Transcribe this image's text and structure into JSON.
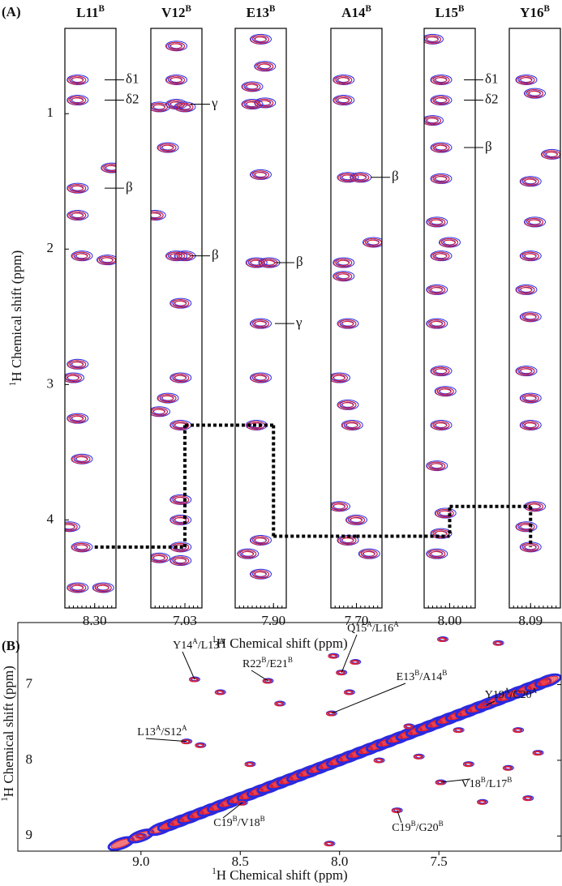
{
  "chart_data": [
    {
      "type": "strips",
      "panel": "(A)",
      "x_label": {
        "sup": "1",
        "text": "H Chemical shift (ppm)"
      },
      "y_label": {
        "sup": "1",
        "text": "H Chemical shift (ppm)"
      },
      "ylim": [
        0.37,
        4.65
      ],
      "yticks": [
        1,
        2,
        3,
        4
      ],
      "colors": [
        "#2a2ae0",
        "#e8202a"
      ],
      "strips": [
        {
          "name": "L11",
          "chain": "B",
          "xlim": [
            8.37,
            8.25
          ],
          "xtick": {
            "value": 8.3,
            "label": "8.30"
          },
          "peaks": [
            {
              "x": 8.34,
              "y": 0.75
            },
            {
              "x": 8.34,
              "y": 0.9
            },
            {
              "x": 8.26,
              "y": 1.4
            },
            {
              "x": 8.34,
              "y": 1.55
            },
            {
              "x": 8.34,
              "y": 1.75
            },
            {
              "x": 8.33,
              "y": 2.05
            },
            {
              "x": 8.27,
              "y": 2.08
            },
            {
              "x": 8.34,
              "y": 2.85
            },
            {
              "x": 8.35,
              "y": 2.95
            },
            {
              "x": 8.34,
              "y": 3.25
            },
            {
              "x": 8.33,
              "y": 3.55
            },
            {
              "x": 8.36,
              "y": 4.05
            },
            {
              "x": 8.33,
              "y": 4.2
            },
            {
              "x": 8.34,
              "y": 4.5
            },
            {
              "x": 8.28,
              "y": 4.5
            }
          ],
          "labels": [
            {
              "text": "δ1",
              "y": 0.75
            },
            {
              "text": "δ2",
              "y": 0.9
            },
            {
              "text": "β",
              "y": 1.55
            }
          ],
          "walk": [
            4.2,
            4.2
          ]
        },
        {
          "name": "V12",
          "chain": "B",
          "xlim": [
            7.11,
            6.99
          ],
          "xtick": {
            "value": 7.03,
            "label": "7.03"
          },
          "peaks": [
            {
              "x": 7.05,
              "y": 0.5
            },
            {
              "x": 7.05,
              "y": 0.75
            },
            {
              "x": 7.09,
              "y": 0.95
            },
            {
              "x": 7.05,
              "y": 0.93
            },
            {
              "x": 7.03,
              "y": 0.95
            },
            {
              "x": 7.07,
              "y": 1.25
            },
            {
              "x": 7.1,
              "y": 1.75
            },
            {
              "x": 7.03,
              "y": 2.05
            },
            {
              "x": 7.05,
              "y": 2.05
            },
            {
              "x": 7.04,
              "y": 2.4
            },
            {
              "x": 7.04,
              "y": 2.95
            },
            {
              "x": 7.07,
              "y": 3.1
            },
            {
              "x": 7.09,
              "y": 3.2
            },
            {
              "x": 7.04,
              "y": 3.3
            },
            {
              "x": 7.04,
              "y": 3.85
            },
            {
              "x": 7.04,
              "y": 4.0
            },
            {
              "x": 7.04,
              "y": 4.2
            },
            {
              "x": 7.04,
              "y": 4.3
            },
            {
              "x": 7.09,
              "y": 4.28
            }
          ],
          "labels": [
            {
              "text": "γ",
              "y": 0.93
            },
            {
              "text": "β",
              "y": 2.05
            }
          ],
          "walk": [
            4.2,
            3.3
          ]
        },
        {
          "name": "E13",
          "chain": "B",
          "xlim": [
            7.99,
            7.87
          ],
          "xtick": {
            "value": 7.9,
            "label": "7.90"
          },
          "peaks": [
            {
              "x": 7.93,
              "y": 0.45
            },
            {
              "x": 7.92,
              "y": 0.65
            },
            {
              "x": 7.95,
              "y": 0.8
            },
            {
              "x": 7.92,
              "y": 0.92
            },
            {
              "x": 7.95,
              "y": 0.93
            },
            {
              "x": 7.93,
              "y": 1.45
            },
            {
              "x": 7.94,
              "y": 2.1
            },
            {
              "x": 7.91,
              "y": 2.1
            },
            {
              "x": 7.93,
              "y": 2.55
            },
            {
              "x": 7.93,
              "y": 2.95
            },
            {
              "x": 7.94,
              "y": 3.3
            },
            {
              "x": 7.93,
              "y": 4.15
            },
            {
              "x": 7.96,
              "y": 4.25
            },
            {
              "x": 7.93,
              "y": 4.4
            }
          ],
          "labels": [
            {
              "text": "β",
              "y": 2.1
            },
            {
              "text": "γ",
              "y": 2.55
            }
          ],
          "walk": [
            3.3,
            4.12
          ]
        },
        {
          "name": "A14",
          "chain": "B",
          "xlim": [
            7.76,
            7.64
          ],
          "xtick": {
            "value": 7.7,
            "label": "7.70"
          },
          "peaks": [
            {
              "x": 7.73,
              "y": 0.75
            },
            {
              "x": 7.73,
              "y": 0.9
            },
            {
              "x": 7.72,
              "y": 1.47
            },
            {
              "x": 7.69,
              "y": 1.47
            },
            {
              "x": 7.66,
              "y": 1.95
            },
            {
              "x": 7.73,
              "y": 2.1
            },
            {
              "x": 7.73,
              "y": 2.2
            },
            {
              "x": 7.72,
              "y": 2.55
            },
            {
              "x": 7.74,
              "y": 2.95
            },
            {
              "x": 7.72,
              "y": 3.15
            },
            {
              "x": 7.71,
              "y": 3.3
            },
            {
              "x": 7.74,
              "y": 3.9
            },
            {
              "x": 7.7,
              "y": 4.0
            },
            {
              "x": 7.72,
              "y": 4.15
            },
            {
              "x": 7.67,
              "y": 4.25
            }
          ],
          "labels": [
            {
              "text": "β",
              "y": 1.47
            }
          ],
          "walk": [
            4.12,
            4.12
          ]
        },
        {
          "name": "L15",
          "chain": "B",
          "xlim": [
            8.06,
            7.94
          ],
          "xtick": {
            "value": 8,
            "label": "8.00"
          },
          "peaks": [
            {
              "x": 8.04,
              "y": 0.45
            },
            {
              "x": 8.02,
              "y": 0.75
            },
            {
              "x": 8.02,
              "y": 0.9
            },
            {
              "x": 8.04,
              "y": 1.05
            },
            {
              "x": 8.02,
              "y": 1.25
            },
            {
              "x": 8.02,
              "y": 1.48
            },
            {
              "x": 8.03,
              "y": 1.8
            },
            {
              "x": 8.0,
              "y": 1.95
            },
            {
              "x": 8.02,
              "y": 2.05
            },
            {
              "x": 8.03,
              "y": 2.3
            },
            {
              "x": 8.03,
              "y": 2.55
            },
            {
              "x": 8.02,
              "y": 2.9
            },
            {
              "x": 8.01,
              "y": 3.05
            },
            {
              "x": 8.02,
              "y": 3.3
            },
            {
              "x": 8.03,
              "y": 3.6
            },
            {
              "x": 8.01,
              "y": 3.95
            },
            {
              "x": 8.02,
              "y": 4.1
            },
            {
              "x": 8.03,
              "y": 4.25
            }
          ],
          "labels": [
            {
              "text": "δ1",
              "y": 0.75
            },
            {
              "text": "δ2",
              "y": 0.9
            },
            {
              "text": "β",
              "y": 1.25
            }
          ],
          "walk": [
            4.1,
            3.9
          ]
        },
        {
          "name": "Y16",
          "chain": "B",
          "xlim": [
            8.14,
            8.02
          ],
          "xtick": {
            "value": 8.09,
            "label": "8.09"
          },
          "peaks": [
            {
              "x": 8.1,
              "y": 0.75
            },
            {
              "x": 8.08,
              "y": 0.85
            },
            {
              "x": 8.04,
              "y": 1.3
            },
            {
              "x": 8.09,
              "y": 1.5
            },
            {
              "x": 8.08,
              "y": 1.8
            },
            {
              "x": 8.09,
              "y": 2.05
            },
            {
              "x": 8.1,
              "y": 2.3
            },
            {
              "x": 8.09,
              "y": 2.5
            },
            {
              "x": 8.1,
              "y": 2.9
            },
            {
              "x": 8.09,
              "y": 3.1
            },
            {
              "x": 8.09,
              "y": 3.3
            },
            {
              "x": 8.08,
              "y": 3.9
            },
            {
              "x": 8.1,
              "y": 4.05
            },
            {
              "x": 8.09,
              "y": 4.2
            }
          ],
          "labels": [],
          "walk": [
            3.9,
            4.2
          ]
        }
      ]
    },
    {
      "type": "spectrum2d",
      "panel": "(B)",
      "x_label": {
        "sup": "1",
        "text": "H Chemical shift (ppm)"
      },
      "y_label": {
        "sup": "1",
        "text": "H Chemical shift (ppm)"
      },
      "xlim": [
        9.62,
        6.88
      ],
      "ylim": [
        6.18,
        9.2
      ],
      "xticks": [
        {
          "value": 9,
          "label": "9.0"
        },
        8.5,
        {
          "value": 8,
          "label": "8.0"
        },
        7.5
      ],
      "yticks": [
        7,
        8,
        9
      ],
      "colors": [
        "#2a2ae0",
        "#e8202a"
      ],
      "diagonal": [
        9.3,
        9.1,
        9.0,
        8.9,
        8.85,
        8.8,
        8.75,
        8.7,
        8.65,
        8.6,
        8.55,
        8.5,
        8.45,
        8.4,
        8.35,
        8.3,
        8.25,
        8.2,
        8.15,
        8.1,
        8.05,
        8.0,
        7.95,
        7.9,
        7.85,
        7.8,
        7.75,
        7.7,
        7.65,
        7.6,
        7.55,
        7.5,
        7.45,
        7.4,
        7.35,
        7.3,
        7.25,
        7.2,
        7.15,
        7.1,
        7.05,
        7.0,
        6.95
      ],
      "peaks": [
        {
          "x": 8.73,
          "y": 6.93
        },
        {
          "x": 7.99,
          "y": 6.84
        },
        {
          "x": 8.36,
          "y": 6.95
        },
        {
          "x": 8.04,
          "y": 7.38
        },
        {
          "x": 7.26,
          "y": 7.27
        },
        {
          "x": 8.77,
          "y": 7.75
        },
        {
          "x": 7.49,
          "y": 8.29
        },
        {
          "x": 8.49,
          "y": 8.56
        },
        {
          "x": 7.71,
          "y": 8.66
        },
        {
          "x": 8.03,
          "y": 6.62
        },
        {
          "x": 7.92,
          "y": 6.7
        },
        {
          "x": 7.48,
          "y": 6.4
        },
        {
          "x": 7.2,
          "y": 6.45
        },
        {
          "x": 8.6,
          "y": 7.1
        },
        {
          "x": 8.3,
          "y": 7.25
        },
        {
          "x": 7.95,
          "y": 7.1
        },
        {
          "x": 7.65,
          "y": 7.55
        },
        {
          "x": 7.4,
          "y": 7.6
        },
        {
          "x": 7.1,
          "y": 7.6
        },
        {
          "x": 7.6,
          "y": 7.95
        },
        {
          "x": 7.35,
          "y": 8.05
        },
        {
          "x": 7.15,
          "y": 8.1
        },
        {
          "x": 7.0,
          "y": 7.9
        },
        {
          "x": 7.8,
          "y": 8.0
        },
        {
          "x": 8.45,
          "y": 8.05
        },
        {
          "x": 8.7,
          "y": 7.8
        },
        {
          "x": 7.28,
          "y": 8.55
        },
        {
          "x": 7.05,
          "y": 8.5
        },
        {
          "x": 8.05,
          "y": 9.1
        },
        {
          "x": 9.0,
          "y": 9.0
        }
      ],
      "labels": [
        {
          "parts": [
            "Y14",
            "A",
            "/L13",
            "A"
          ],
          "x": 8.73,
          "y": 6.93
        },
        {
          "parts": [
            "Q15",
            "A",
            "/L16",
            "A"
          ],
          "x": 7.99,
          "y": 6.84
        },
        {
          "parts": [
            "R22",
            "B",
            "/E21",
            "B"
          ],
          "x": 8.36,
          "y": 6.95
        },
        {
          "parts": [
            "E13",
            "B",
            "/A14",
            "B"
          ],
          "x": 8.04,
          "y": 7.38
        },
        {
          "parts": [
            "Y19",
            "A",
            "/C20",
            "A"
          ],
          "x": 7.26,
          "y": 7.27
        },
        {
          "parts": [
            "L13",
            "A",
            "/S12",
            "A"
          ],
          "x": 8.77,
          "y": 7.75
        },
        {
          "parts": [
            "V18",
            "B",
            "/L17",
            "B"
          ],
          "x": 7.49,
          "y": 8.29
        },
        {
          "parts": [
            "C19",
            "B",
            "/V18",
            "B"
          ],
          "x": 8.49,
          "y": 8.56
        },
        {
          "parts": [
            "C19",
            "B",
            "/G20",
            "B"
          ],
          "x": 7.71,
          "y": 8.66
        }
      ]
    }
  ]
}
